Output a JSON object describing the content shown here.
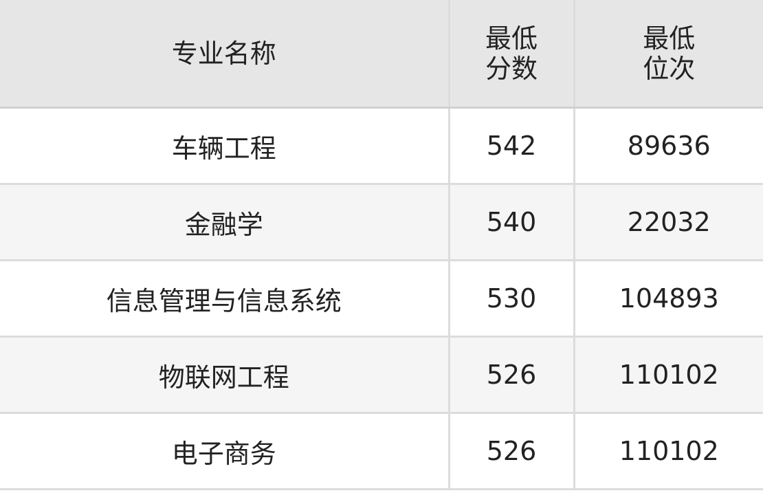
{
  "table": {
    "headers": [
      "专业名称",
      "最低\n分数",
      "最低\n位次"
    ],
    "header_lines": [
      [
        "专业名称"
      ],
      [
        "最低",
        "分数"
      ],
      [
        "最低",
        "位次"
      ]
    ],
    "rows": [
      [
        "车辆工程",
        "542",
        "89636"
      ],
      [
        "金融学",
        "540",
        "22032"
      ],
      [
        "信息管理与信息系统",
        "530",
        "104893"
      ],
      [
        "物联网工程",
        "526",
        "110102"
      ],
      [
        "电子商务",
        "526",
        "110102"
      ]
    ]
  }
}
